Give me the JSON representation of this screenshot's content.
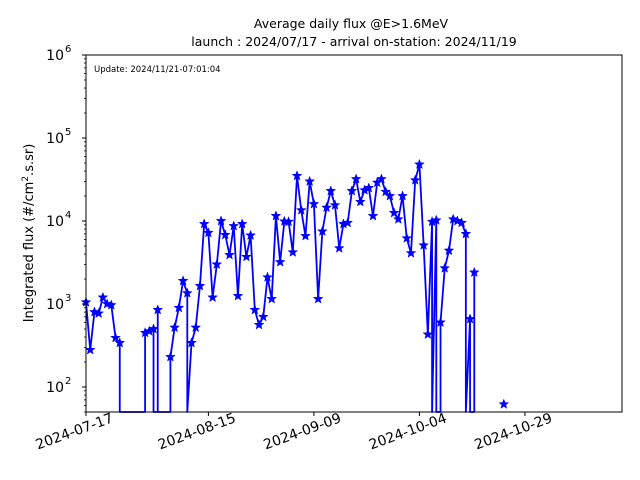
{
  "chart_data": {
    "type": "line",
    "title": "Average daily flux @E>1.6MeV",
    "subtitle": "launch : 2024/07/17 - arrival on-station: 2024/11/19",
    "annotation": "Update: 2024/11/21-07:01:04",
    "ylabel": "Integrated flux (#/cm².s.sr)",
    "xlabel": "",
    "yscale": "log",
    "ylim": [
      50,
      1000000
    ],
    "xlim": [
      "2024-07-17",
      "2024-11-21"
    ],
    "x_ticks": [
      "2024-07-17",
      "2024-08-15",
      "2024-09-09",
      "2024-10-04",
      "2024-10-29"
    ],
    "y_ticks": [
      {
        "value": 100,
        "base": "10",
        "exp": "2"
      },
      {
        "value": 1000,
        "base": "10",
        "exp": "3"
      },
      {
        "value": 10000,
        "base": "10",
        "exp": "4"
      },
      {
        "value": 100000,
        "base": "10",
        "exp": "5"
      },
      {
        "value": 1000000,
        "base": "10",
        "exp": "6"
      }
    ],
    "grid": false,
    "line_color": "#0000ff",
    "marker": "star",
    "series": [
      {
        "points": [
          [
            "2024-07-17",
            1050
          ],
          [
            "2024-07-18",
            280
          ],
          [
            "2024-07-19",
            800
          ],
          [
            "2024-07-20",
            770
          ],
          [
            "2024-07-21",
            1200
          ],
          [
            "2024-07-22",
            1000
          ],
          [
            "2024-07-23",
            970
          ],
          [
            "2024-07-24",
            390
          ],
          [
            "2024-07-25",
            340
          ],
          [
            "2024-07-25",
            50
          ],
          [
            "2024-07-31",
            50
          ],
          [
            "2024-07-31",
            450
          ],
          [
            "2024-08-01",
            470
          ],
          [
            "2024-08-02",
            500
          ],
          [
            "2024-08-02",
            50
          ],
          [
            "2024-08-03",
            50
          ],
          [
            "2024-08-03",
            850
          ],
          [
            "2024-08-03",
            50
          ],
          [
            "2024-08-06",
            50
          ],
          [
            "2024-08-06",
            230
          ],
          [
            "2024-08-07",
            520
          ],
          [
            "2024-08-08",
            900
          ],
          [
            "2024-08-09",
            1900
          ],
          [
            "2024-08-10",
            1350
          ],
          [
            "2024-08-10",
            50
          ],
          [
            "2024-08-11",
            340
          ],
          [
            "2024-08-12",
            520
          ],
          [
            "2024-08-13",
            1650
          ],
          [
            "2024-08-14",
            9200
          ],
          [
            "2024-08-15",
            7200
          ],
          [
            "2024-08-16",
            1200
          ],
          [
            "2024-08-17",
            3000
          ],
          [
            "2024-08-18",
            10000
          ],
          [
            "2024-08-19",
            6800
          ],
          [
            "2024-08-20",
            3900
          ],
          [
            "2024-08-21",
            8700
          ],
          [
            "2024-08-22",
            1250
          ],
          [
            "2024-08-23",
            9200
          ],
          [
            "2024-08-24",
            3700
          ],
          [
            "2024-08-25",
            6700
          ],
          [
            "2024-08-26",
            850
          ],
          [
            "2024-08-27",
            560
          ],
          [
            "2024-08-28",
            700
          ],
          [
            "2024-08-29",
            2100
          ],
          [
            "2024-08-30",
            1150
          ],
          [
            "2024-08-31",
            11500
          ],
          [
            "2024-09-01",
            3200
          ],
          [
            "2024-09-02",
            9900
          ],
          [
            "2024-09-03",
            9800
          ],
          [
            "2024-09-04",
            4200
          ],
          [
            "2024-09-05",
            35000
          ],
          [
            "2024-09-06",
            13500
          ],
          [
            "2024-09-07",
            6600
          ],
          [
            "2024-09-08",
            30000
          ],
          [
            "2024-09-09",
            16000
          ],
          [
            "2024-09-10",
            1150
          ],
          [
            "2024-09-11",
            7500
          ],
          [
            "2024-09-12",
            14500
          ],
          [
            "2024-09-13",
            23000
          ],
          [
            "2024-09-14",
            15500
          ],
          [
            "2024-09-15",
            4700
          ],
          [
            "2024-09-16",
            9200
          ],
          [
            "2024-09-17",
            9500
          ],
          [
            "2024-09-18",
            23000
          ],
          [
            "2024-09-19",
            32000
          ],
          [
            "2024-09-20",
            17000
          ],
          [
            "2024-09-21",
            23500
          ],
          [
            "2024-09-22",
            25000
          ],
          [
            "2024-09-23",
            11500
          ],
          [
            "2024-09-24",
            29000
          ],
          [
            "2024-09-25",
            32000
          ],
          [
            "2024-09-26",
            22500
          ],
          [
            "2024-09-27",
            20000
          ],
          [
            "2024-09-28",
            12500
          ],
          [
            "2024-09-29",
            10500
          ],
          [
            "2024-09-30",
            20000
          ],
          [
            "2024-10-01",
            6200
          ],
          [
            "2024-10-02",
            4100
          ],
          [
            "2024-10-03",
            31000
          ],
          [
            "2024-10-04",
            48000
          ],
          [
            "2024-10-05",
            5100
          ],
          [
            "2024-10-06",
            430
          ],
          [
            "2024-10-07",
            9800
          ],
          [
            "2024-10-07",
            50
          ],
          [
            "2024-10-08",
            10200
          ],
          [
            "2024-10-08",
            50
          ],
          [
            "2024-10-09",
            50
          ],
          [
            "2024-10-09",
            600
          ],
          [
            "2024-10-10",
            2700
          ],
          [
            "2024-10-11",
            4400
          ],
          [
            "2024-10-12",
            10500
          ],
          [
            "2024-10-13",
            10000
          ],
          [
            "2024-10-14",
            9500
          ],
          [
            "2024-10-15",
            7000
          ],
          [
            "2024-10-15",
            50
          ],
          [
            "2024-10-16",
            660
          ],
          [
            "2024-10-16",
            50
          ],
          [
            "2024-10-17",
            50
          ],
          [
            "2024-10-17",
            2400
          ],
          [
            "2024-10-17",
            50
          ]
        ],
        "isolated_points": [
          [
            "2024-10-24",
            62
          ]
        ]
      }
    ]
  }
}
